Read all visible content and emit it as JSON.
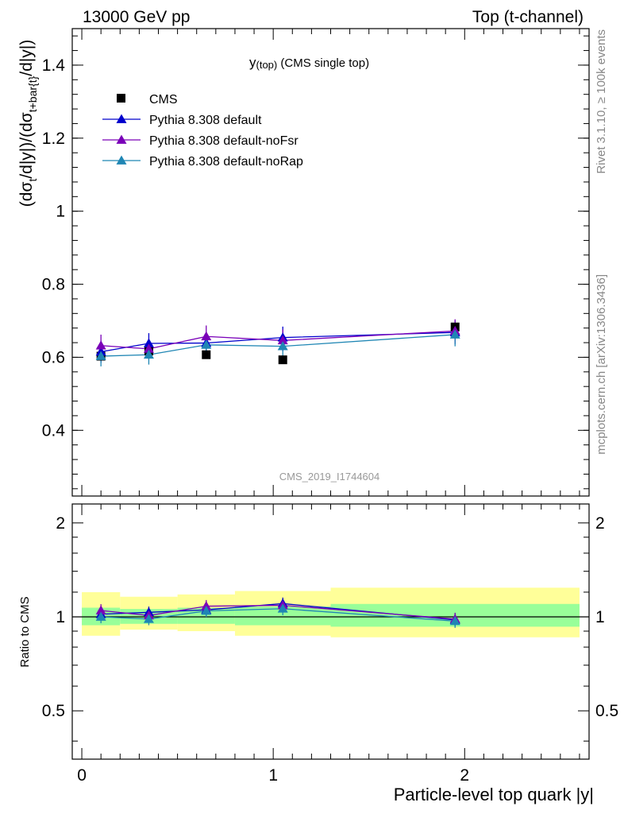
{
  "header": {
    "left": "13000 GeV pp",
    "right": "Top (t-channel)"
  },
  "side_labels": {
    "rivet": "Rivet 3.1.10, ≥ 100k events",
    "mcplots": "mcplots.cern.ch [arXiv:1306.3436]"
  },
  "watermark": "CMS_2019_I1744604",
  "colors": {
    "data": "#000000",
    "default": "#0000cc",
    "noFsr": "#7a00b8",
    "noRap": "#1f86b4",
    "band_inner": "#99ff99",
    "band_outer": "#ffff99"
  },
  "chart_data": [
    {
      "type": "scatter",
      "panel": "main",
      "title": "y(top) (CMS single top)",
      "title_main": "y",
      "title_sub": "(top)",
      "title_rest": " (CMS single top)",
      "ylabel": "(dσt/d|y|)/(dσt+bar{t}/d|y|)",
      "ylabel_parts": [
        "(dσ",
        "t",
        "/d|y|)/(dσ",
        "t+bar{t}",
        "/d|y|)"
      ],
      "xlim": [
        -0.05,
        2.65
      ],
      "ylim": [
        0.22,
        1.5
      ],
      "yticks": [
        0.4,
        0.6,
        0.8,
        1.0,
        1.2,
        1.4
      ],
      "ytick_labels": [
        "0.4",
        "0.6",
        "0.8",
        "1",
        "1.2",
        "1.4"
      ],
      "legend_position": "top-left",
      "data_series": {
        "name": "CMS",
        "x": [
          0.1,
          0.35,
          0.65,
          1.05,
          1.95
        ],
        "y": [
          0.603,
          0.617,
          0.607,
          0.593,
          0.683
        ]
      },
      "series": [
        {
          "name": "Pythia 8.308 default",
          "color_key": "default",
          "x": [
            0.1,
            0.35,
            0.65,
            1.05,
            1.95
          ],
          "y": [
            0.615,
            0.638,
            0.639,
            0.654,
            0.668
          ],
          "err": [
            0.03,
            0.028,
            0.028,
            0.03,
            0.032
          ]
        },
        {
          "name": "Pythia 8.308 default-noFsr",
          "color_key": "noFsr",
          "x": [
            0.1,
            0.35,
            0.65,
            1.05,
            1.95
          ],
          "y": [
            0.632,
            0.623,
            0.657,
            0.646,
            0.672
          ],
          "err": [
            0.03,
            0.028,
            0.03,
            0.03,
            0.032
          ]
        },
        {
          "name": "Pythia 8.308 default-noRap",
          "color_key": "noRap",
          "x": [
            0.1,
            0.35,
            0.65,
            1.05,
            1.95
          ],
          "y": [
            0.603,
            0.607,
            0.634,
            0.63,
            0.662
          ],
          "err": [
            0.028,
            0.027,
            0.028,
            0.03,
            0.032
          ]
        }
      ]
    },
    {
      "type": "scatter",
      "panel": "ratio",
      "ylabel": "Ratio to CMS",
      "xlabel": "Particle-level top quark |y|",
      "xlim": [
        -0.05,
        2.65
      ],
      "xticks": [
        0,
        1,
        2
      ],
      "xtick_labels": [
        "0",
        "1",
        "2"
      ],
      "ylim": [
        0.35,
        2.3
      ],
      "yticks": [
        0.5,
        1,
        2
      ],
      "ytick_labels": [
        "0.5",
        "1",
        "2"
      ],
      "log_y": true,
      "bands": [
        {
          "x0": 0.0,
          "x1": 0.2,
          "inner": [
            0.94,
            1.07
          ],
          "outer": [
            0.87,
            1.2
          ]
        },
        {
          "x0": 0.2,
          "x1": 0.5,
          "inner": [
            0.95,
            1.06
          ],
          "outer": [
            0.91,
            1.16
          ]
        },
        {
          "x0": 0.5,
          "x1": 0.8,
          "inner": [
            0.95,
            1.07
          ],
          "outer": [
            0.9,
            1.18
          ]
        },
        {
          "x0": 0.8,
          "x1": 1.3,
          "inner": [
            0.94,
            1.08
          ],
          "outer": [
            0.87,
            1.21
          ]
        },
        {
          "x0": 1.3,
          "x1": 2.6,
          "inner": [
            0.93,
            1.1
          ],
          "outer": [
            0.86,
            1.24
          ]
        }
      ],
      "series": [
        {
          "name": "Pythia 8.308 default",
          "color_key": "default",
          "x": [
            0.1,
            0.35,
            0.65,
            1.05,
            1.95
          ],
          "y": [
            1.02,
            1.034,
            1.053,
            1.103,
            0.978
          ],
          "err": [
            0.05,
            0.045,
            0.046,
            0.05,
            0.047
          ]
        },
        {
          "name": "Pythia 8.308 default-noFsr",
          "color_key": "noFsr",
          "x": [
            0.1,
            0.35,
            0.65,
            1.05,
            1.95
          ],
          "y": [
            1.048,
            1.01,
            1.082,
            1.089,
            0.984
          ],
          "err": [
            0.05,
            0.045,
            0.05,
            0.05,
            0.047
          ]
        },
        {
          "name": "Pythia 8.308 default-noRap",
          "color_key": "noRap",
          "x": [
            0.1,
            0.35,
            0.65,
            1.05,
            1.95
          ],
          "y": [
            1.0,
            0.984,
            1.045,
            1.062,
            0.969
          ],
          "err": [
            0.046,
            0.044,
            0.046,
            0.05,
            0.047
          ]
        }
      ]
    }
  ]
}
